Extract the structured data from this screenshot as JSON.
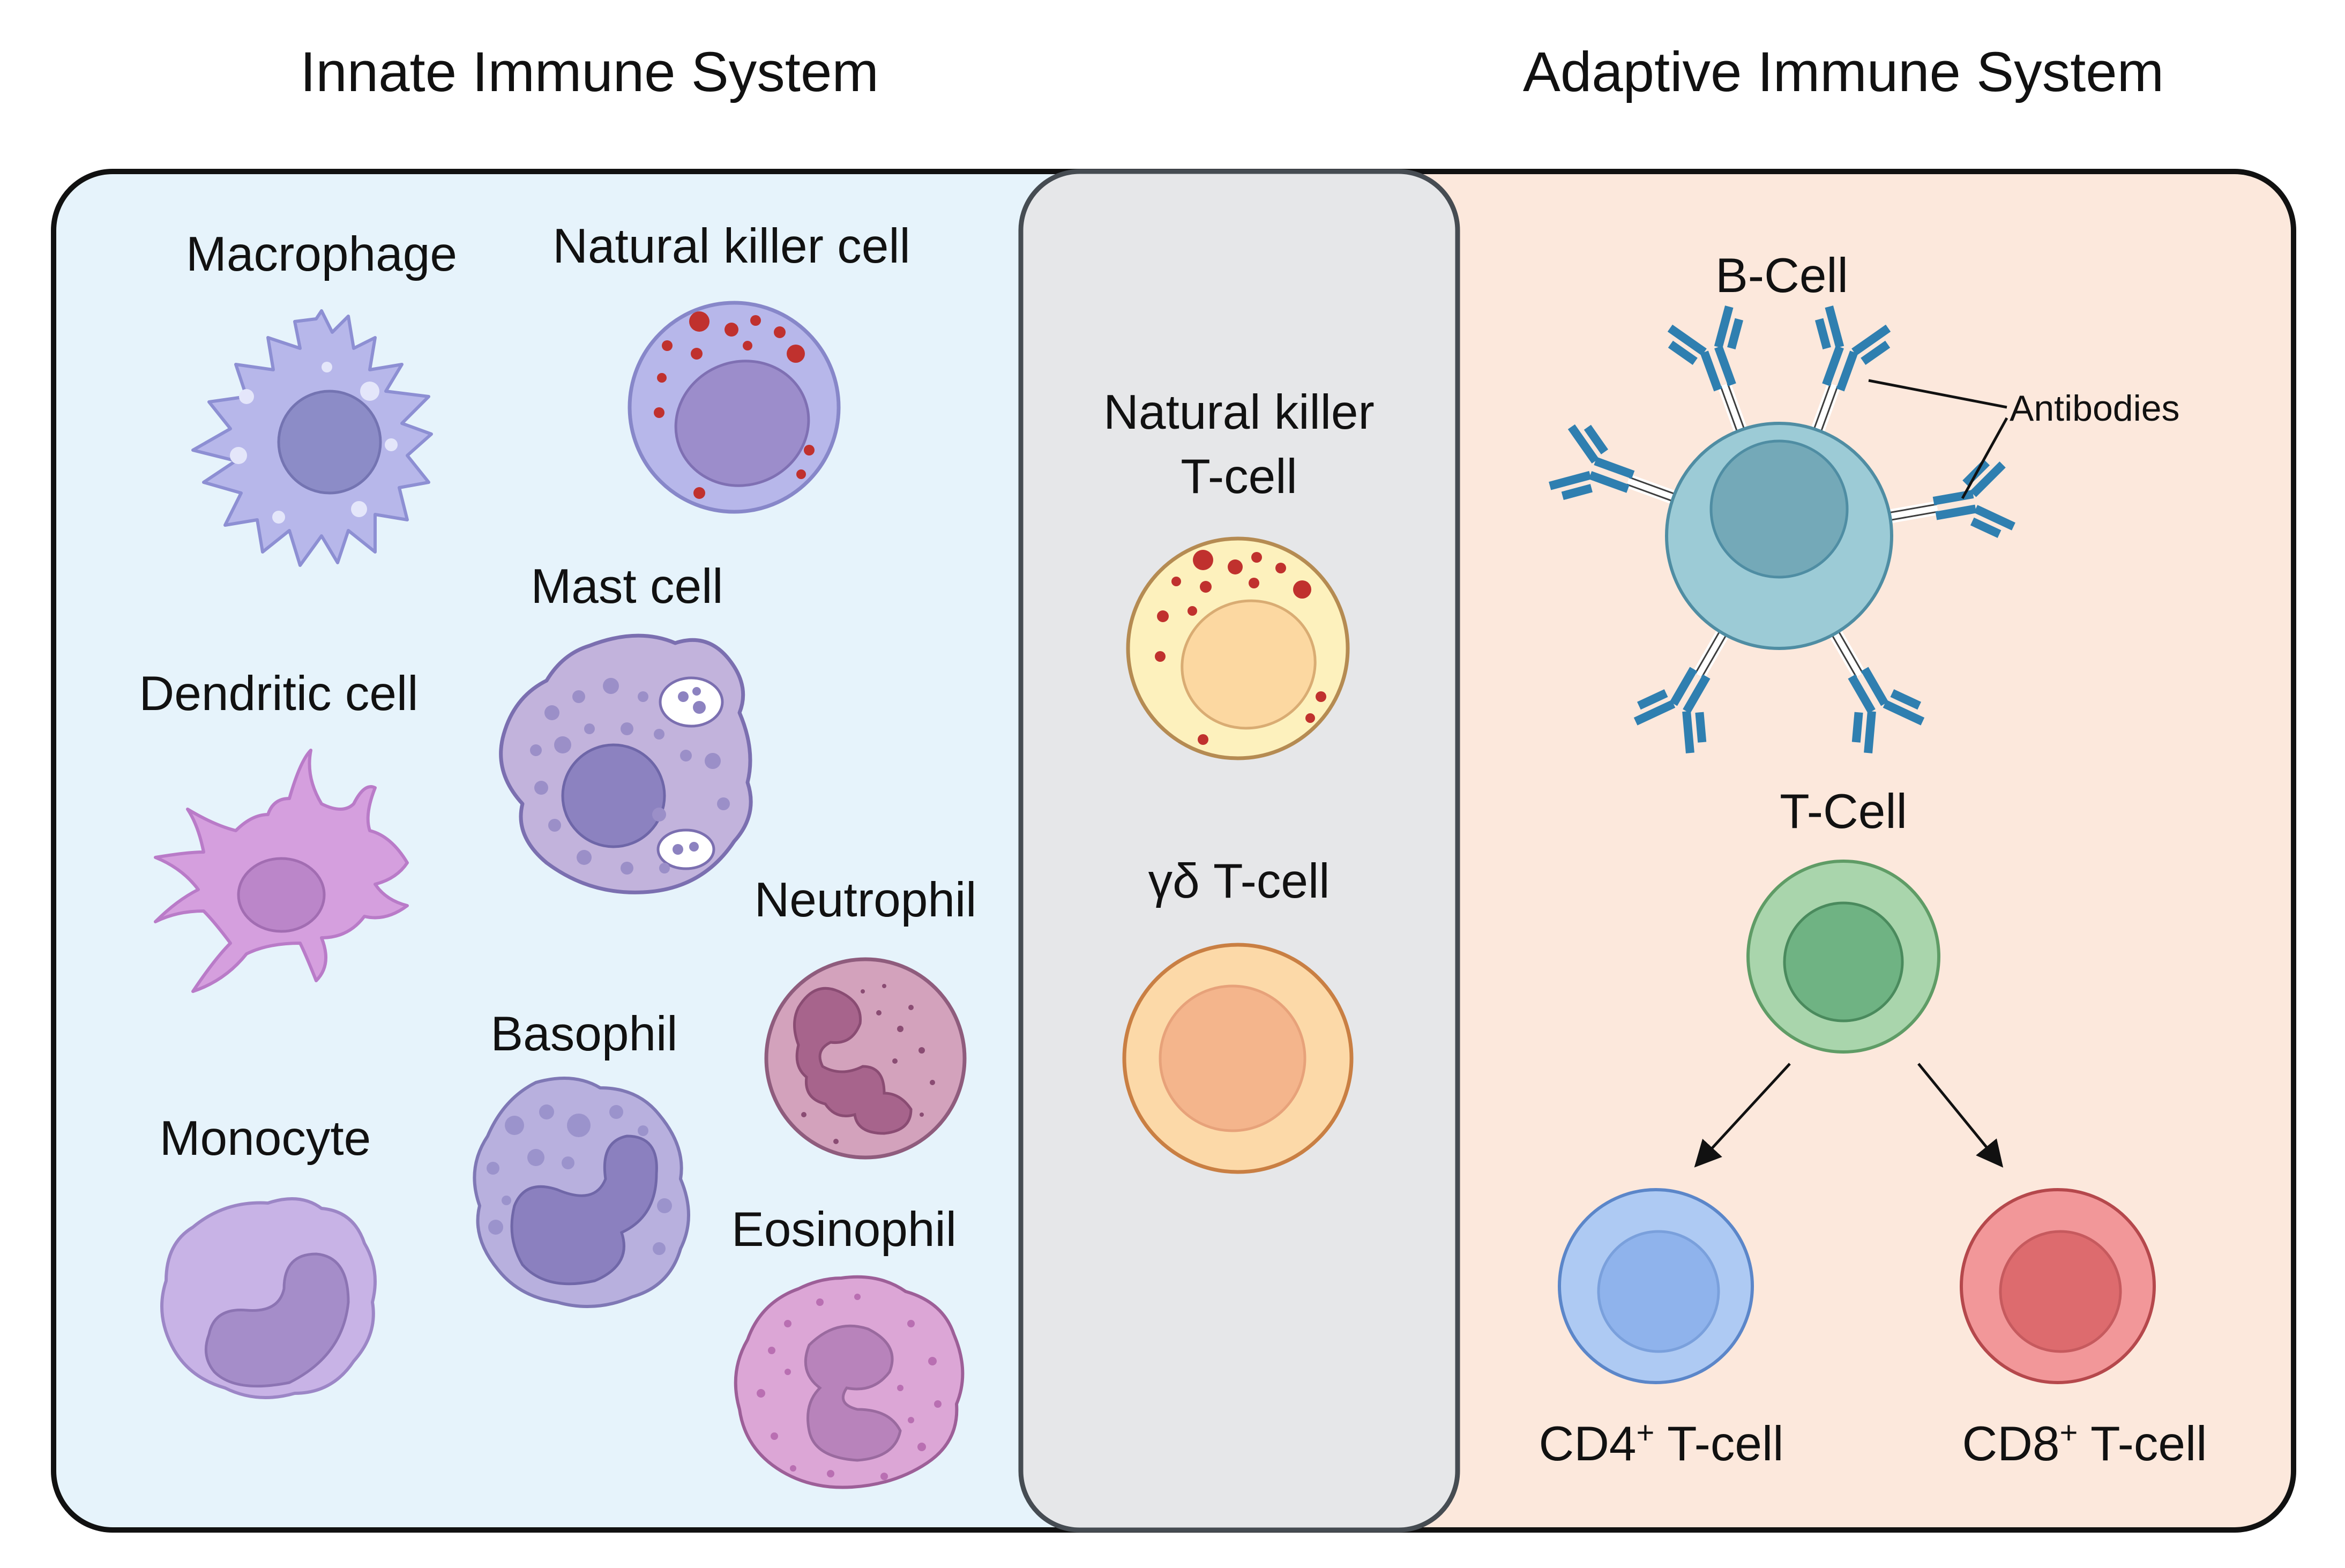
{
  "headings": {
    "innate": "Innate Immune System",
    "adaptive": "Adaptive Immune System"
  },
  "innate_cells": {
    "macrophage": "Macrophage",
    "nk_cell": "Natural killer cell",
    "mast_cell": "Mast cell",
    "dendritic_cell": "Dendritic cell",
    "neutrophil": "Neutrophil",
    "basophil": "Basophil",
    "monocyte": "Monocyte",
    "eosinophil": "Eosinophil"
  },
  "bridge_cells": {
    "nkt_line1": "Natural killer",
    "nkt_line2": "T-cell",
    "gd_t_cell": "γδ T-cell"
  },
  "adaptive_cells": {
    "b_cell": "B-Cell",
    "antibodies": "Antibodies",
    "t_cell": "T-Cell",
    "cd4": "CD4",
    "cd8": "CD8",
    "superscript": "+",
    "t_cell_suffix": " T-cell"
  },
  "colors": {
    "innate_panel": "#e6f3fb",
    "bridge_panel": "#e6e7e9",
    "adaptive_panel": "#fce8dc",
    "b_cell": "#9ccbd6",
    "t_cell": "#a9d5ac",
    "cd4": "#aecaf3",
    "cd8": "#f29799",
    "antibody": "#2f7fb0"
  }
}
